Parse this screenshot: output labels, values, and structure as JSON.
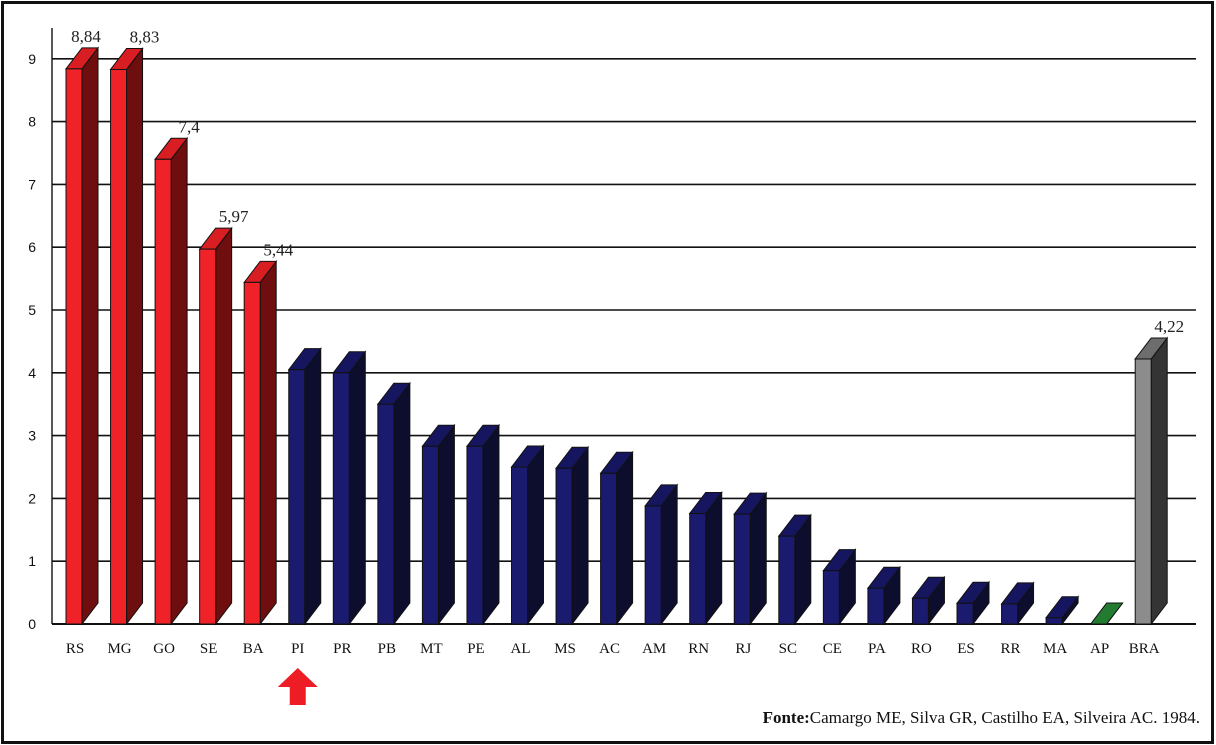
{
  "chart_data": {
    "type": "bar",
    "style": "3d",
    "title": "",
    "xlabel": "",
    "ylabel": "",
    "ylim": [
      0,
      9
    ],
    "yticks": [
      0,
      1,
      2,
      3,
      4,
      5,
      6,
      7,
      8,
      9
    ],
    "grid": true,
    "categories": [
      "RS",
      "MG",
      "GO",
      "SE",
      "BA",
      "PI",
      "PR",
      "PB",
      "MT",
      "PE",
      "AL",
      "MS",
      "AC",
      "AM",
      "RN",
      "RJ",
      "SC",
      "CE",
      "PA",
      "RO",
      "ES",
      "RR",
      "MA",
      "AP",
      "BRA"
    ],
    "values": [
      8.84,
      8.83,
      7.4,
      5.97,
      5.44,
      4.05,
      4.0,
      3.5,
      2.83,
      2.83,
      2.5,
      2.48,
      2.4,
      1.88,
      1.76,
      1.75,
      1.4,
      0.85,
      0.57,
      0.41,
      0.33,
      0.32,
      0.1,
      0.0,
      4.22
    ],
    "data_labels": [
      "8,84",
      "8,83",
      "7,4",
      "5,97",
      "5,44",
      "",
      "",
      "",
      "",
      "",
      "",
      "",
      "",
      "",
      "",
      "",
      "",
      "",
      "",
      "",
      "",
      "",
      "",
      "",
      "4,22"
    ],
    "groups": [
      "red",
      "red",
      "red",
      "red",
      "red",
      "blue",
      "blue",
      "blue",
      "blue",
      "blue",
      "blue",
      "blue",
      "blue",
      "blue",
      "blue",
      "blue",
      "blue",
      "blue",
      "blue",
      "blue",
      "blue",
      "blue",
      "blue",
      "green",
      "gray"
    ],
    "colors": {
      "red": {
        "front": "#ee2227",
        "top": "#d91e23",
        "side": "#6e0e0f"
      },
      "blue": {
        "front": "#1a1a6e",
        "top": "#161660",
        "side": "#0d0d2e"
      },
      "green": {
        "front": "#2c8a3a",
        "top": "#237a31",
        "side": "#14491c"
      },
      "gray": {
        "front": "#8c8c8c",
        "top": "#6d6d6d",
        "side": "#343434"
      }
    },
    "highlight_category": "PI",
    "highlight_color": "#ee1c24"
  },
  "source": {
    "label": "Fonte:",
    "text": "Camargo ME, Silva GR, Castilho EA, Silveira AC. 1984."
  }
}
